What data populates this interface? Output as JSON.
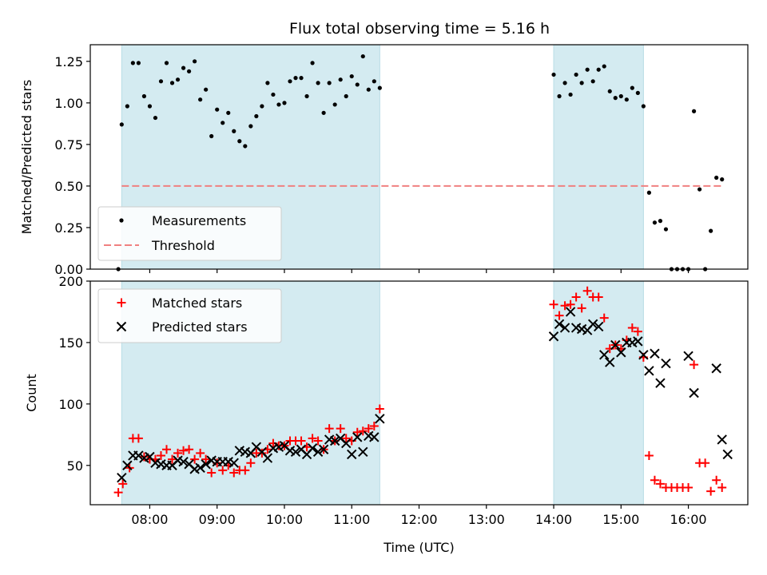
{
  "chart_data": {
    "type": "scatter",
    "title": "Flux total observing time = 5.16 h",
    "xlabel": "Time (UTC)",
    "x_unit": "hours UTC",
    "xlim": [
      "07:07",
      "16:53"
    ],
    "x_ticks": [
      "08:00",
      "09:00",
      "10:00",
      "11:00",
      "12:00",
      "13:00",
      "14:00",
      "15:00",
      "16:00"
    ],
    "shaded_intervals": [
      [
        "07:35",
        "11:25"
      ],
      [
        "14:00",
        "15:20"
      ]
    ],
    "shade_color": "#d4ebf1",
    "panels": [
      {
        "id": "ratio",
        "ylabel": "Matched/Predicted stars",
        "ylim": [
          0,
          1.35
        ],
        "y_ticks": [
          "0.00",
          "0.25",
          "0.50",
          "0.75",
          "1.00",
          "1.25"
        ],
        "legend_position": "lower-left",
        "threshold": {
          "name": "Threshold",
          "value": 0.5,
          "x_range": [
            "07:35",
            "16:30"
          ],
          "color": "#f08080"
        },
        "series": [
          {
            "name": "Measurements",
            "marker": "dot",
            "color": "#000000",
            "points": [
              [
                "07:32",
                0.0
              ],
              [
                "07:35",
                0.87
              ],
              [
                "07:40",
                0.98
              ],
              [
                "07:45",
                1.24
              ],
              [
                "07:50",
                1.24
              ],
              [
                "07:55",
                1.04
              ],
              [
                "08:00",
                0.98
              ],
              [
                "08:05",
                0.91
              ],
              [
                "08:10",
                1.13
              ],
              [
                "08:15",
                1.24
              ],
              [
                "08:20",
                1.12
              ],
              [
                "08:25",
                1.14
              ],
              [
                "08:30",
                1.21
              ],
              [
                "08:35",
                1.19
              ],
              [
                "08:40",
                1.25
              ],
              [
                "08:45",
                1.02
              ],
              [
                "08:50",
                1.08
              ],
              [
                "08:55",
                0.8
              ],
              [
                "09:00",
                0.96
              ],
              [
                "09:05",
                0.88
              ],
              [
                "09:10",
                0.94
              ],
              [
                "09:15",
                0.83
              ],
              [
                "09:20",
                0.77
              ],
              [
                "09:25",
                0.74
              ],
              [
                "09:30",
                0.86
              ],
              [
                "09:35",
                0.92
              ],
              [
                "09:40",
                0.98
              ],
              [
                "09:45",
                1.12
              ],
              [
                "09:50",
                1.05
              ],
              [
                "09:55",
                0.99
              ],
              [
                "10:00",
                1.0
              ],
              [
                "10:05",
                1.13
              ],
              [
                "10:10",
                1.15
              ],
              [
                "10:15",
                1.15
              ],
              [
                "10:20",
                1.04
              ],
              [
                "10:25",
                1.24
              ],
              [
                "10:30",
                1.12
              ],
              [
                "10:35",
                0.94
              ],
              [
                "10:40",
                1.12
              ],
              [
                "10:45",
                0.99
              ],
              [
                "10:50",
                1.14
              ],
              [
                "10:55",
                1.04
              ],
              [
                "11:00",
                1.16
              ],
              [
                "11:05",
                1.11
              ],
              [
                "11:10",
                1.28
              ],
              [
                "11:15",
                1.08
              ],
              [
                "11:20",
                1.13
              ],
              [
                "11:25",
                1.09
              ],
              [
                "14:00",
                1.17
              ],
              [
                "14:05",
                1.04
              ],
              [
                "14:10",
                1.12
              ],
              [
                "14:15",
                1.05
              ],
              [
                "14:20",
                1.17
              ],
              [
                "14:25",
                1.12
              ],
              [
                "14:30",
                1.2
              ],
              [
                "14:35",
                1.13
              ],
              [
                "14:40",
                1.2
              ],
              [
                "14:45",
                1.22
              ],
              [
                "14:50",
                1.07
              ],
              [
                "14:55",
                1.03
              ],
              [
                "15:00",
                1.04
              ],
              [
                "15:05",
                1.02
              ],
              [
                "15:10",
                1.09
              ],
              [
                "15:15",
                1.06
              ],
              [
                "15:20",
                0.98
              ],
              [
                "15:25",
                0.46
              ],
              [
                "15:30",
                0.28
              ],
              [
                "15:35",
                0.29
              ],
              [
                "15:40",
                0.24
              ],
              [
                "15:45",
                0.0
              ],
              [
                "15:50",
                0.0
              ],
              [
                "15:55",
                0.0
              ],
              [
                "16:00",
                0.0
              ],
              [
                "16:05",
                0.95
              ],
              [
                "16:10",
                0.48
              ],
              [
                "16:15",
                0.0
              ],
              [
                "16:20",
                0.23
              ],
              [
                "16:25",
                0.55
              ],
              [
                "16:30",
                0.54
              ]
            ]
          }
        ]
      },
      {
        "id": "counts",
        "ylabel": "Count",
        "ylim": [
          18,
          200
        ],
        "y_ticks": [
          "50",
          "100",
          "150",
          "200"
        ],
        "legend_position": "top-left",
        "series": [
          {
            "name": "Matched stars",
            "marker": "plus",
            "color": "#ff0000",
            "points": [
              [
                "07:32",
                28
              ],
              [
                "07:36",
                35
              ],
              [
                "07:42",
                48
              ],
              [
                "07:45",
                72
              ],
              [
                "07:50",
                72
              ],
              [
                "07:55",
                57
              ],
              [
                "08:00",
                55
              ],
              [
                "08:05",
                55
              ],
              [
                "08:10",
                58
              ],
              [
                "08:15",
                63
              ],
              [
                "08:20",
                55
              ],
              [
                "08:25",
                60
              ],
              [
                "08:30",
                62
              ],
              [
                "08:35",
                63
              ],
              [
                "08:40",
                55
              ],
              [
                "08:45",
                60
              ],
              [
                "08:50",
                55
              ],
              [
                "08:55",
                44
              ],
              [
                "09:00",
                52
              ],
              [
                "09:05",
                46
              ],
              [
                "09:10",
                50
              ],
              [
                "09:15",
                44
              ],
              [
                "09:20",
                46
              ],
              [
                "09:25",
                46
              ],
              [
                "09:30",
                52
              ],
              [
                "09:35",
                60
              ],
              [
                "09:40",
                60
              ],
              [
                "09:45",
                63
              ],
              [
                "09:50",
                68
              ],
              [
                "09:55",
                66
              ],
              [
                "10:00",
                66
              ],
              [
                "10:05",
                70
              ],
              [
                "10:10",
                70
              ],
              [
                "10:15",
                70
              ],
              [
                "10:20",
                65
              ],
              [
                "10:25",
                72
              ],
              [
                "10:30",
                70
              ],
              [
                "10:35",
                63
              ],
              [
                "10:40",
                80
              ],
              [
                "10:45",
                70
              ],
              [
                "10:50",
                80
              ],
              [
                "10:55",
                72
              ],
              [
                "11:00",
                70
              ],
              [
                "11:05",
                77
              ],
              [
                "11:10",
                78
              ],
              [
                "11:15",
                80
              ],
              [
                "11:20",
                82
              ],
              [
                "11:25",
                96
              ],
              [
                "14:00",
                181
              ],
              [
                "14:05",
                172
              ],
              [
                "14:10",
                180
              ],
              [
                "14:15",
                181
              ],
              [
                "14:20",
                187
              ],
              [
                "14:25",
                178
              ],
              [
                "14:30",
                192
              ],
              [
                "14:35",
                187
              ],
              [
                "14:40",
                187
              ],
              [
                "14:45",
                170
              ],
              [
                "14:50",
                145
              ],
              [
                "14:55",
                148
              ],
              [
                "15:00",
                145
              ],
              [
                "15:05",
                152
              ],
              [
                "15:10",
                162
              ],
              [
                "15:15",
                159
              ],
              [
                "15:20",
                138
              ],
              [
                "15:25",
                58
              ],
              [
                "15:30",
                38
              ],
              [
                "15:35",
                35
              ],
              [
                "15:40",
                32
              ],
              [
                "15:45",
                32
              ],
              [
                "15:50",
                32
              ],
              [
                "15:55",
                32
              ],
              [
                "16:00",
                32
              ],
              [
                "16:05",
                132
              ],
              [
                "16:10",
                52
              ],
              [
                "16:15",
                52
              ],
              [
                "16:20",
                29
              ],
              [
                "16:25",
                38
              ],
              [
                "16:30",
                32
              ]
            ]
          },
          {
            "name": "Predicted stars",
            "marker": "x",
            "color": "#000000",
            "points": [
              [
                "07:35",
                40
              ],
              [
                "07:40",
                50
              ],
              [
                "07:45",
                58
              ],
              [
                "07:50",
                58
              ],
              [
                "07:55",
                56
              ],
              [
                "08:00",
                57
              ],
              [
                "08:05",
                52
              ],
              [
                "08:10",
                51
              ],
              [
                "08:15",
                50
              ],
              [
                "08:20",
                50
              ],
              [
                "08:25",
                54
              ],
              [
                "08:30",
                53
              ],
              [
                "08:35",
                51
              ],
              [
                "08:40",
                47
              ],
              [
                "08:45",
                48
              ],
              [
                "08:50",
                51
              ],
              [
                "08:55",
                54
              ],
              [
                "09:00",
                53
              ],
              [
                "09:05",
                53
              ],
              [
                "09:10",
                53
              ],
              [
                "09:15",
                52
              ],
              [
                "09:20",
                62
              ],
              [
                "09:25",
                61
              ],
              [
                "09:30",
                60
              ],
              [
                "09:35",
                65
              ],
              [
                "09:40",
                61
              ],
              [
                "09:45",
                56
              ],
              [
                "09:50",
                64
              ],
              [
                "09:55",
                65
              ],
              [
                "10:00",
                66
              ],
              [
                "10:05",
                62
              ],
              [
                "10:10",
                61
              ],
              [
                "10:15",
                63
              ],
              [
                "10:20",
                59
              ],
              [
                "10:25",
                64
              ],
              [
                "10:30",
                61
              ],
              [
                "10:35",
                63
              ],
              [
                "10:40",
                71
              ],
              [
                "10:45",
                70
              ],
              [
                "10:50",
                72
              ],
              [
                "10:55",
                68
              ],
              [
                "11:00",
                59
              ],
              [
                "11:05",
                73
              ],
              [
                "11:10",
                61
              ],
              [
                "11:15",
                74
              ],
              [
                "11:20",
                73
              ],
              [
                "11:25",
                88
              ],
              [
                "14:00",
                155
              ],
              [
                "14:05",
                165
              ],
              [
                "14:10",
                162
              ],
              [
                "14:15",
                175
              ],
              [
                "14:20",
                162
              ],
              [
                "14:25",
                161
              ],
              [
                "14:30",
                160
              ],
              [
                "14:35",
                165
              ],
              [
                "14:40",
                163
              ],
              [
                "14:45",
                140
              ],
              [
                "14:50",
                134
              ],
              [
                "14:55",
                148
              ],
              [
                "15:00",
                142
              ],
              [
                "15:05",
                150
              ],
              [
                "15:10",
                150
              ],
              [
                "15:15",
                151
              ],
              [
                "15:20",
                140
              ],
              [
                "15:25",
                127
              ],
              [
                "15:30",
                141
              ],
              [
                "15:35",
                117
              ],
              [
                "15:40",
                133
              ],
              [
                "16:00",
                139
              ],
              [
                "16:05",
                109
              ],
              [
                "16:25",
                129
              ],
              [
                "16:30",
                71
              ],
              [
                "16:35",
                59
              ]
            ]
          }
        ]
      }
    ]
  }
}
